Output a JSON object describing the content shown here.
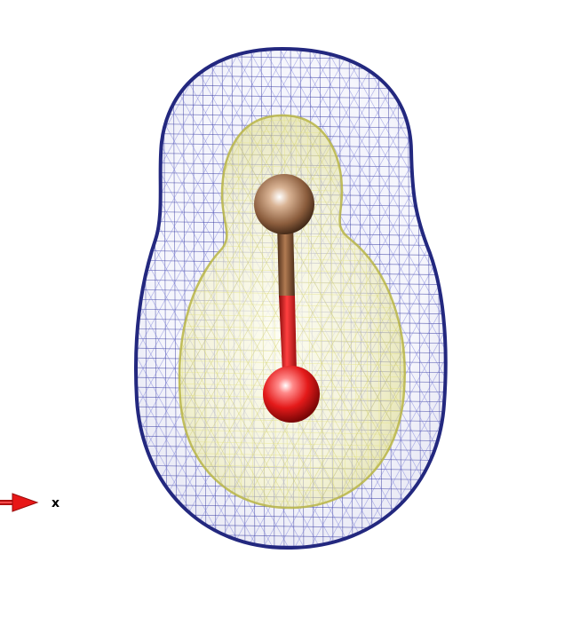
{
  "scene": {
    "background_color": "#ffffff",
    "outer_isosurface": {
      "style": "wireframe",
      "color": "#2b2f9c",
      "highlight_color": "#c7c9ee"
    },
    "inner_isosurface": {
      "style": "translucent-mesh",
      "color": "#e5e38a",
      "highlight_color": "#fdfde0"
    },
    "atoms": [
      {
        "element": "C",
        "color": "#8a5c3c"
      },
      {
        "element": "O",
        "color": "#e41a1a"
      }
    ],
    "bond": {
      "upper_color": "#8a5c3c",
      "lower_color": "#e41a1a"
    }
  },
  "axis_indicator": {
    "label": "x",
    "color": "#e81717"
  }
}
